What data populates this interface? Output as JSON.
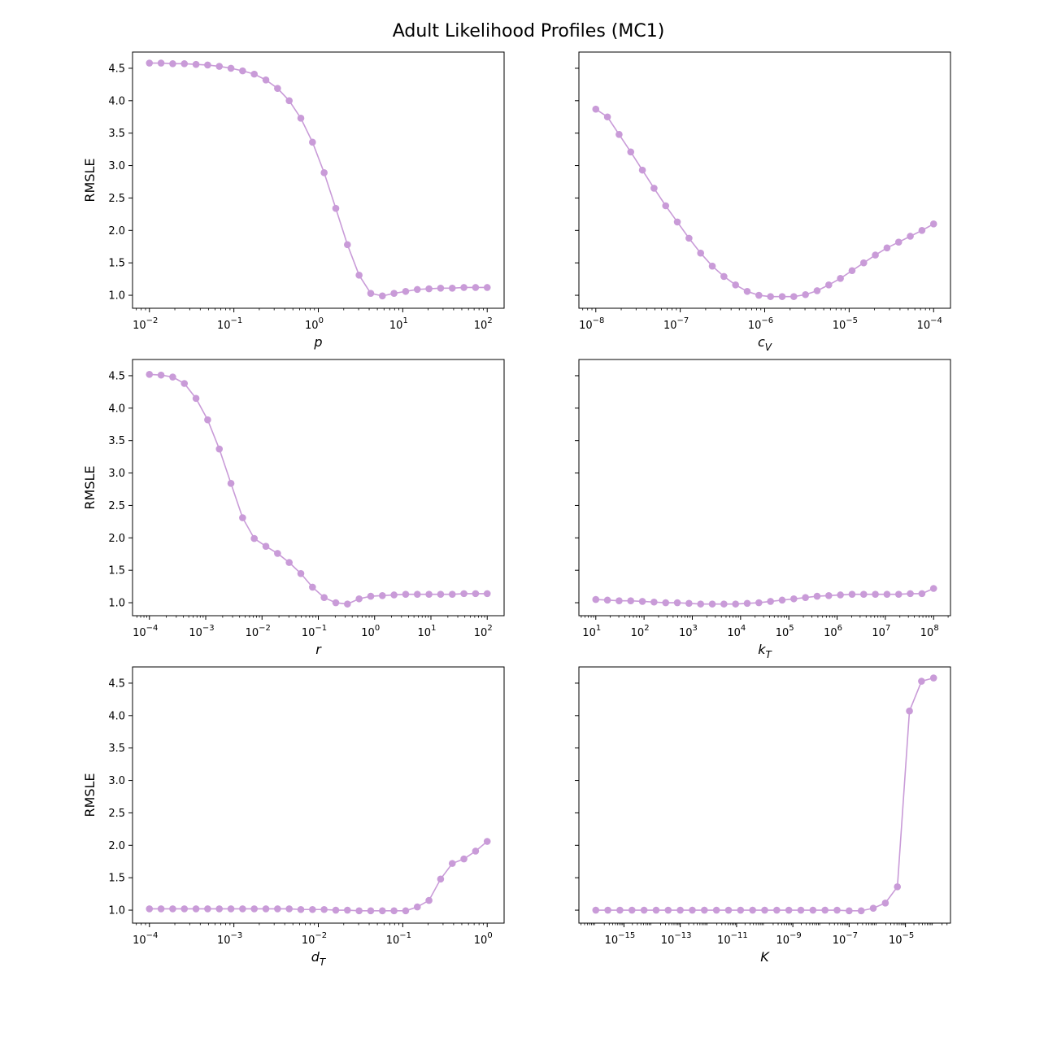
{
  "figure_title": "Adult Likelihood Profiles (MC1)",
  "series_color": "#c99bd8",
  "chart_data": [
    {
      "type": "line",
      "xscale": "log",
      "xlabel_base": "p",
      "xlabel_sub": "",
      "ylabel": "RMSLE",
      "ylim": [
        0.8,
        4.75
      ],
      "yticks": [
        1.0,
        1.5,
        2.0,
        2.5,
        3.0,
        3.5,
        4.0,
        4.5
      ],
      "ytick_labels": [
        "1.0",
        "1.5",
        "2.0",
        "2.5",
        "3.0",
        "3.5",
        "4.0",
        "4.5"
      ],
      "x_range": [
        0.01,
        100
      ],
      "xticks_exp": [
        "-2",
        "-1",
        "0",
        "1",
        "2"
      ],
      "y": [
        4.58,
        4.58,
        4.57,
        4.57,
        4.56,
        4.55,
        4.53,
        4.5,
        4.46,
        4.41,
        4.32,
        4.19,
        4.0,
        3.73,
        3.36,
        2.89,
        2.34,
        1.78,
        1.31,
        1.03,
        0.99,
        1.03,
        1.06,
        1.09,
        1.1,
        1.11,
        1.11,
        1.12,
        1.12,
        1.12
      ]
    },
    {
      "type": "line",
      "xscale": "log",
      "xlabel_base": "c",
      "xlabel_sub": "V",
      "ylabel": "",
      "ylim": [
        0.8,
        4.75
      ],
      "yticks": [
        1.0,
        1.5,
        2.0,
        2.5,
        3.0,
        3.5,
        4.0,
        4.5
      ],
      "ytick_labels": [],
      "x_range": [
        1e-08,
        0.0001
      ],
      "xticks_exp": [
        "-8",
        "-7",
        "-6",
        "-5",
        "-4"
      ],
      "y": [
        3.87,
        3.75,
        3.48,
        3.21,
        2.93,
        2.65,
        2.38,
        2.13,
        1.88,
        1.65,
        1.45,
        1.29,
        1.16,
        1.06,
        1.0,
        0.98,
        0.98,
        0.98,
        1.01,
        1.07,
        1.16,
        1.26,
        1.38,
        1.5,
        1.62,
        1.73,
        1.82,
        1.91,
        2.0,
        2.1
      ]
    },
    {
      "type": "line",
      "xscale": "log",
      "xlabel_base": "r",
      "xlabel_sub": "",
      "ylabel": "RMSLE",
      "ylim": [
        0.8,
        4.75
      ],
      "yticks": [
        1.0,
        1.5,
        2.0,
        2.5,
        3.0,
        3.5,
        4.0,
        4.5
      ],
      "ytick_labels": [
        "1.0",
        "1.5",
        "2.0",
        "2.5",
        "3.0",
        "3.5",
        "4.0",
        "4.5"
      ],
      "x_range": [
        0.0001,
        100
      ],
      "xticks_exp": [
        "-4",
        "-3",
        "-2",
        "-1",
        "0",
        "1",
        "2"
      ],
      "y": [
        4.52,
        4.51,
        4.48,
        4.38,
        4.15,
        3.82,
        3.37,
        2.84,
        2.31,
        1.99,
        1.87,
        1.76,
        1.62,
        1.45,
        1.24,
        1.08,
        1.0,
        0.98,
        1.06,
        1.1,
        1.11,
        1.12,
        1.13,
        1.13,
        1.13,
        1.13,
        1.13,
        1.14,
        1.14,
        1.14
      ]
    },
    {
      "type": "line",
      "xscale": "log",
      "xlabel_base": "k",
      "xlabel_sub": "T",
      "ylabel": "",
      "ylim": [
        0.8,
        4.75
      ],
      "yticks": [
        1.0,
        1.5,
        2.0,
        2.5,
        3.0,
        3.5,
        4.0,
        4.5
      ],
      "ytick_labels": [],
      "x_range": [
        10,
        100000000.0
      ],
      "xticks_exp": [
        "1",
        "2",
        "3",
        "4",
        "5",
        "6",
        "7",
        "8"
      ],
      "y": [
        1.05,
        1.04,
        1.03,
        1.03,
        1.02,
        1.01,
        1.0,
        1.0,
        0.99,
        0.98,
        0.98,
        0.98,
        0.98,
        0.99,
        1.0,
        1.02,
        1.04,
        1.06,
        1.08,
        1.1,
        1.11,
        1.12,
        1.13,
        1.13,
        1.13,
        1.13,
        1.13,
        1.14,
        1.14,
        1.22
      ]
    },
    {
      "type": "line",
      "xscale": "log",
      "xlabel_base": "d",
      "xlabel_sub": "T",
      "ylabel": "RMSLE",
      "ylim": [
        0.8,
        4.75
      ],
      "yticks": [
        1.0,
        1.5,
        2.0,
        2.5,
        3.0,
        3.5,
        4.0,
        4.5
      ],
      "ytick_labels": [
        "1.0",
        "1.5",
        "2.0",
        "2.5",
        "3.0",
        "3.5",
        "4.0",
        "4.5"
      ],
      "x_range": [
        0.0001,
        1
      ],
      "xticks_exp": [
        "-4",
        "-3",
        "-2",
        "-1",
        "0"
      ],
      "y": [
        1.02,
        1.02,
        1.02,
        1.02,
        1.02,
        1.02,
        1.02,
        1.02,
        1.02,
        1.02,
        1.02,
        1.02,
        1.02,
        1.01,
        1.01,
        1.01,
        1.0,
        1.0,
        0.99,
        0.99,
        0.99,
        0.99,
        0.99,
        1.05,
        1.15,
        1.48,
        1.72,
        1.79,
        1.91,
        2.06
      ]
    },
    {
      "type": "line",
      "xscale": "log",
      "xlabel_base": "K",
      "xlabel_sub": "",
      "ylabel": "",
      "ylim": [
        0.8,
        4.75
      ],
      "yticks": [
        1.0,
        1.5,
        2.0,
        2.5,
        3.0,
        3.5,
        4.0,
        4.5
      ],
      "ytick_labels": [],
      "x_range": [
        1e-16,
        0.0001
      ],
      "xticks_exp": [
        "-15",
        "-13",
        "-11",
        "-9",
        "-7",
        "-5"
      ],
      "y": [
        1.0,
        1.0,
        1.0,
        1.0,
        1.0,
        1.0,
        1.0,
        1.0,
        1.0,
        1.0,
        1.0,
        1.0,
        1.0,
        1.0,
        1.0,
        1.0,
        1.0,
        1.0,
        1.0,
        1.0,
        1.0,
        0.99,
        0.99,
        1.03,
        1.11,
        1.36,
        4.07,
        4.53,
        4.58
      ]
    }
  ]
}
